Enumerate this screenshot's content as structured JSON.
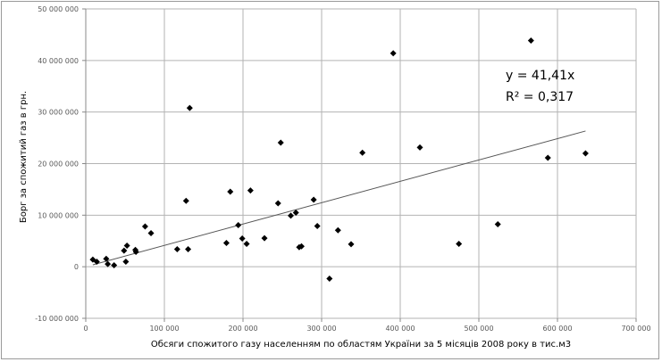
{
  "chart_data": {
    "type": "scatter",
    "title": "",
    "xlabel": "Обсяги спожитого газу населенням по областям України за 5 місяців 2008 року в тис.м3",
    "ylabel": "Борг за спожитий газ в грн.",
    "xlim": [
      0,
      700000
    ],
    "ylim": [
      -10000000,
      50000000
    ],
    "x_ticks": [
      "0",
      "100 000",
      "200 000",
      "300 000",
      "400 000",
      "500 000",
      "600 000",
      "700 000"
    ],
    "y_ticks": [
      "-10 000 000",
      "0",
      "10 000 000",
      "20 000 000",
      "30 000 000",
      "40 000 000",
      "50 000 000"
    ],
    "grid": true,
    "legend": "none",
    "marker_color": "#000000",
    "points": [
      [
        9000,
        1380000
      ],
      [
        14000,
        980000
      ],
      [
        26000,
        1550000
      ],
      [
        28000,
        520000
      ],
      [
        36000,
        290000
      ],
      [
        48700,
        3110000
      ],
      [
        52400,
        4090000
      ],
      [
        51000,
        980000
      ],
      [
        63100,
        3280000
      ],
      [
        63800,
        2880000
      ],
      [
        75500,
        7820000
      ],
      [
        83000,
        6510000
      ],
      [
        116300,
        3400000
      ],
      [
        130200,
        3400000
      ],
      [
        127600,
        12780000
      ],
      [
        132200,
        30790000
      ],
      [
        178900,
        4610000
      ],
      [
        183800,
        14560000
      ],
      [
        194000,
        8070000
      ],
      [
        199000,
        5470000
      ],
      [
        204600,
        4440000
      ],
      [
        209500,
        14800000
      ],
      [
        227300,
        5530000
      ],
      [
        244600,
        12310000
      ],
      [
        248000,
        24060000
      ],
      [
        260800,
        9900000
      ],
      [
        267300,
        10480000
      ],
      [
        271500,
        3800000
      ],
      [
        274400,
        3970000
      ],
      [
        289900,
        13000000
      ],
      [
        294500,
        7890000
      ],
      [
        310000,
        -2300000
      ],
      [
        320800,
        7080000
      ],
      [
        337500,
        4370000
      ],
      [
        351900,
        22110000
      ],
      [
        391100,
        41400000
      ],
      [
        425000,
        23140000
      ],
      [
        474600,
        4440000
      ],
      [
        524100,
        8240000
      ],
      [
        566300,
        43870000
      ],
      [
        587800,
        21120000
      ],
      [
        635700,
        21980000
      ]
    ],
    "trendline": {
      "type": "linear-through-origin",
      "slope": 41.41,
      "x_range": [
        9000,
        635700
      ],
      "equation": "y = 41,41x",
      "r_squared": "R² = 0,317"
    }
  }
}
